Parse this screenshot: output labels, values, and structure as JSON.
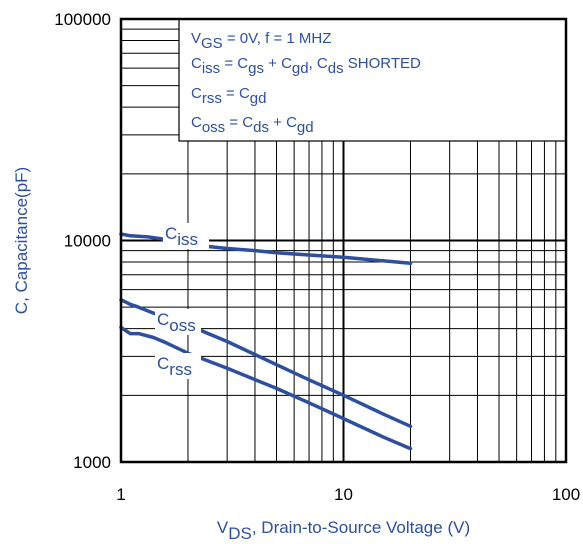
{
  "chart_data": {
    "type": "line",
    "xscale": "log",
    "yscale": "log",
    "xlim": [
      1,
      100
    ],
    "ylim": [
      1000,
      100000
    ],
    "grid": true,
    "x_ticks": [
      "1",
      "10",
      "100"
    ],
    "y_ticks": [
      "1000",
      "10000",
      "100000"
    ],
    "xlabel": {
      "main": "V",
      "sub": "DS",
      "rest": ", Drain-to-Source Voltage (V)"
    },
    "ylabel": "C, Capacitance(pF)",
    "conditions": [
      {
        "parts": [
          [
            "V",
            ""
          ],
          [
            "GS",
            "sub"
          ],
          [
            "  = 0V,        f = 1 MHZ",
            ""
          ]
        ]
      },
      {
        "parts": [
          [
            "C",
            ""
          ],
          [
            "iss",
            "sub"
          ],
          [
            "  = C",
            ""
          ],
          [
            "gs",
            "sub"
          ],
          [
            " + C",
            ""
          ],
          [
            "gd",
            "sub"
          ],
          [
            ",  C",
            ""
          ],
          [
            "ds",
            "sub"
          ],
          [
            " SHORTED",
            ""
          ]
        ]
      },
      {
        "parts": [
          [
            "C",
            ""
          ],
          [
            "rss",
            "sub"
          ],
          [
            "  = C",
            ""
          ],
          [
            "gd",
            "sub"
          ]
        ]
      },
      {
        "parts": [
          [
            "C",
            ""
          ],
          [
            "oss",
            "sub"
          ],
          [
            "  = C",
            ""
          ],
          [
            "ds",
            "sub"
          ],
          [
            " + C",
            ""
          ],
          [
            "gd",
            "sub"
          ]
        ]
      }
    ],
    "series": [
      {
        "name": "iss",
        "label": {
          "main": "C",
          "sub": "iss"
        },
        "color": "#2d4f9e",
        "x": [
          1.0,
          1.1,
          1.3,
          1.5,
          1.7,
          2.0,
          3.0,
          4.0,
          5.0,
          7.0,
          10.0,
          15.0,
          20.0
        ],
        "y": [
          10700,
          10500,
          10400,
          10200,
          9900,
          9600,
          9200,
          9000,
          8800,
          8600,
          8400,
          8100,
          7900
        ]
      },
      {
        "name": "oss",
        "label": {
          "main": "C",
          "sub": "oss"
        },
        "color": "#2d4f9e",
        "x": [
          1.0,
          1.1,
          1.2,
          1.4,
          1.6,
          2.0,
          3.0,
          5.0,
          7.0,
          10.0,
          15.0,
          20.0
        ],
        "y": [
          5400,
          5150,
          5000,
          4700,
          4500,
          4150,
          3500,
          2750,
          2350,
          2000,
          1650,
          1450
        ]
      },
      {
        "name": "rss",
        "label": {
          "main": "C",
          "sub": "rss"
        },
        "color": "#2d4f9e",
        "x": [
          1.0,
          1.1,
          1.2,
          1.4,
          1.6,
          2.0,
          3.0,
          5.0,
          7.0,
          10.0,
          15.0,
          20.0
        ],
        "y": [
          4050,
          3800,
          3800,
          3650,
          3450,
          3100,
          2650,
          2150,
          1850,
          1570,
          1300,
          1150
        ]
      }
    ]
  }
}
